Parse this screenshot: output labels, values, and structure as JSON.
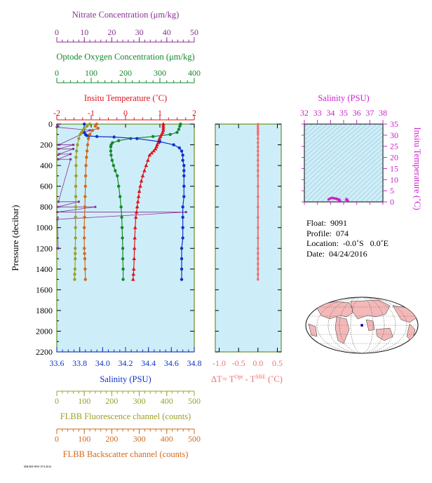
{
  "colors": {
    "nitrate": "#8B2F94",
    "oxygen": "#14892C",
    "temperature": "#E0131B",
    "salinity": "#1030CC",
    "fluorescence": "#9AA028",
    "backscatter": "#D2691E",
    "delta_t": "#F07070",
    "ts_axis": "#CC22CC",
    "plot_bg": "#CDEEF8",
    "frame": "#6B8E23"
  },
  "axes": {
    "nitrate": {
      "label": "Nitrate Concentration (μm/kg)",
      "ticks": [
        "0",
        "10",
        "20",
        "30",
        "40",
        "50"
      ],
      "range": [
        0,
        50
      ]
    },
    "oxygen": {
      "label": "Optode Oxygen Concentration (μm/kg)",
      "ticks": [
        "0",
        "100",
        "200",
        "300",
        "400"
      ],
      "range": [
        0,
        400
      ]
    },
    "temperature": {
      "label": "Insitu Temperature (˚C)",
      "ticks": [
        "-2",
        "-1",
        "0",
        "1",
        "2"
      ],
      "range": [
        -2,
        2
      ]
    },
    "pressure": {
      "label": "Pressure (decibar)",
      "ticks": [
        "0",
        "200",
        "400",
        "600",
        "800",
        "1000",
        "1200",
        "1400",
        "1600",
        "1800",
        "2000",
        "2200"
      ],
      "range": [
        0,
        2200
      ]
    },
    "salinity": {
      "label": "Salinity (PSU)",
      "ticks": [
        "33.6",
        "33.8",
        "34.0",
        "34.2",
        "34.4",
        "34.6",
        "34.8"
      ],
      "range": [
        33.6,
        34.8
      ]
    },
    "fluorescence": {
      "label": "FLBB Fluorescence channel (counts)",
      "ticks": [
        "0",
        "100",
        "200",
        "300",
        "400",
        "500"
      ],
      "range": [
        0,
        500
      ]
    },
    "backscatter": {
      "label": "FLBB Backscatter channel (counts)",
      "ticks": [
        "0",
        "100",
        "200",
        "300",
        "400",
        "500"
      ],
      "range": [
        0,
        500
      ]
    },
    "delta_t": {
      "label_main": "ΔT= T",
      "sup1": "Opt",
      "label_mid": " - T",
      "sup2": "SBE",
      "label_unit": " (˚C)",
      "ticks": [
        "-1.0",
        "-0.5",
        "0.0",
        "0.5"
      ],
      "range": [
        -1.1,
        0.6
      ]
    },
    "ts_salinity": {
      "label": "Salinity (PSU)",
      "ticks": [
        "32",
        "33",
        "34",
        "35",
        "36",
        "37",
        "38"
      ],
      "range": [
        32,
        38
      ]
    },
    "ts_temperature": {
      "label": "Insitu Temperature (˚C)",
      "ticks": [
        "0",
        "5",
        "10",
        "15",
        "20",
        "25",
        "30",
        "35"
      ],
      "range": [
        0,
        35
      ]
    }
  },
  "info": {
    "float": "Float:  9091",
    "profile": "Profile:  074",
    "location": "Location:  -0.0˚S   0.0˚E",
    "date": "Date:  04/24/2016"
  },
  "footer_code": "MBARI-9091-074-2016",
  "chart_data": [
    {
      "type": "line",
      "name": "profile",
      "y_axis": "Pressure (decibar)",
      "ylim": [
        2200,
        0
      ],
      "grid": false,
      "series": [
        {
          "name": "Nitrate",
          "axis": "nitrate",
          "x": [
            0.5,
            0,
            12,
            0.8,
            6,
            0.6,
            6,
            0.8,
            5,
            0.5,
            5,
            0.6,
            8,
            0.3,
            14,
            0.2,
            47,
            0.2,
            0.5,
            0.2
          ],
          "y": [
            20,
            30,
            60,
            200,
            200,
            240,
            240,
            290,
            290,
            340,
            340,
            750,
            750,
            800,
            800,
            850,
            850,
            920,
            1200,
            1200
          ]
        },
        {
          "name": "Oxygen",
          "axis": "oxygen",
          "x": [
            360,
            358,
            355,
            350,
            330,
            280,
            215,
            180,
            162,
            158,
            157,
            157,
            158,
            161,
            165,
            170,
            176,
            180,
            184,
            187,
            189,
            190,
            191,
            192,
            192,
            193,
            193
          ],
          "y": [
            0,
            20,
            50,
            80,
            100,
            120,
            140,
            160,
            180,
            200,
            220,
            260,
            300,
            350,
            400,
            450,
            500,
            600,
            700,
            800,
            900,
            1000,
            1100,
            1200,
            1300,
            1400,
            1500
          ]
        },
        {
          "name": "Temperature",
          "axis": "temperature",
          "x": [
            1.1,
            1.1,
            1.1,
            1.1,
            1.08,
            1.05,
            1.02,
            0.99,
            0.97,
            0.95,
            0.92,
            0.9,
            0.87,
            0.82,
            0.76,
            0.7,
            0.65,
            0.6,
            0.55,
            0.5,
            0.46,
            0.43,
            0.4,
            0.38,
            0.36,
            0.34,
            0.32,
            0.3,
            0.28,
            0.27,
            0.26,
            0.25,
            0.24,
            0.23,
            0.22
          ],
          "y": [
            0,
            20,
            40,
            60,
            80,
            100,
            120,
            140,
            160,
            180,
            200,
            220,
            240,
            260,
            280,
            300,
            350,
            400,
            450,
            500,
            550,
            600,
            650,
            700,
            750,
            800,
            850,
            900,
            1000,
            1100,
            1200,
            1300,
            1400,
            1450,
            1500
          ]
        },
        {
          "name": "Salinity",
          "axis": "salinity",
          "x": [
            33.84,
            33.84,
            33.84,
            33.85,
            33.86,
            33.88,
            33.95,
            34.1,
            34.3,
            34.5,
            34.62,
            34.67,
            34.69,
            34.7,
            34.7,
            34.71,
            34.71,
            34.71,
            34.71,
            34.71,
            34.7,
            34.7,
            34.7,
            34.7,
            34.69,
            34.69,
            34.69,
            34.69
          ],
          "y": [
            0,
            40,
            80,
            100,
            110,
            115,
            120,
            125,
            140,
            170,
            200,
            230,
            260,
            300,
            350,
            400,
            450,
            500,
            600,
            700,
            800,
            900,
            1000,
            1100,
            1200,
            1300,
            1400,
            1500
          ]
        },
        {
          "name": "Fluorescence",
          "axis": "fluorescence",
          "x": [
            120,
            110,
            100,
            95,
            90,
            85,
            80,
            75,
            72,
            70,
            70,
            70,
            69,
            69,
            69,
            68,
            68,
            68,
            67,
            67,
            67,
            66,
            65,
            65
          ],
          "y": [
            0,
            20,
            40,
            60,
            80,
            100,
            140,
            200,
            260,
            320,
            400,
            500,
            600,
            700,
            800,
            900,
            1000,
            1100,
            1200,
            1250,
            1300,
            1400,
            1450,
            1500
          ]
        },
        {
          "name": "Backscatter",
          "axis": "backscatter",
          "x": [
            145,
            140,
            150,
            130,
            120,
            115,
            112,
            110,
            108,
            106,
            105,
            104,
            103,
            102,
            101,
            100,
            100,
            100,
            101,
            102,
            103,
            104
          ],
          "y": [
            0,
            20,
            40,
            60,
            100,
            140,
            200,
            260,
            320,
            400,
            500,
            600,
            700,
            800,
            900,
            1000,
            1100,
            1200,
            1250,
            1300,
            1400,
            1500
          ]
        }
      ]
    },
    {
      "type": "line",
      "name": "delta_t",
      "y_axis": "Pressure (decibar)",
      "ylim": [
        2200,
        0
      ],
      "series": [
        {
          "name": "ΔT",
          "x": [
            0.0,
            0.0,
            0.0,
            0.0,
            0.0,
            0.0,
            0.0,
            0.0,
            0.0,
            0.0,
            0.0,
            0.0,
            0.0,
            0.0,
            0.0,
            0.0,
            0.0,
            0.0,
            0.0,
            0.0,
            0.0,
            0.0,
            0.0,
            0.0,
            0.0,
            0.0,
            0.0,
            0.0
          ],
          "y": [
            0,
            20,
            40,
            60,
            80,
            100,
            140,
            180,
            220,
            260,
            300,
            350,
            400,
            450,
            500,
            600,
            700,
            800,
            900,
            1000,
            1100,
            1200,
            1250,
            1300,
            1350,
            1400,
            1450,
            1500
          ]
        }
      ]
    },
    {
      "type": "scatter",
      "name": "ts_diagram",
      "xlim": [
        32,
        38
      ],
      "ylim": [
        0,
        35
      ],
      "series": [
        {
          "name": "T-S",
          "x": [
            34.7,
            34.7,
            34.7,
            34.7,
            34.68,
            34.65,
            34.6,
            34.55,
            34.5,
            34.45,
            34.4,
            34.3,
            34.2,
            34.1,
            34.0,
            33.9,
            33.85
          ],
          "y": [
            0.2,
            0.3,
            0.5,
            0.7,
            0.9,
            1.0,
            1.1,
            1.2,
            1.3,
            1.4,
            1.5,
            1.6,
            1.7,
            1.8,
            1.6,
            1.3,
            1.1
          ]
        }
      ]
    }
  ]
}
